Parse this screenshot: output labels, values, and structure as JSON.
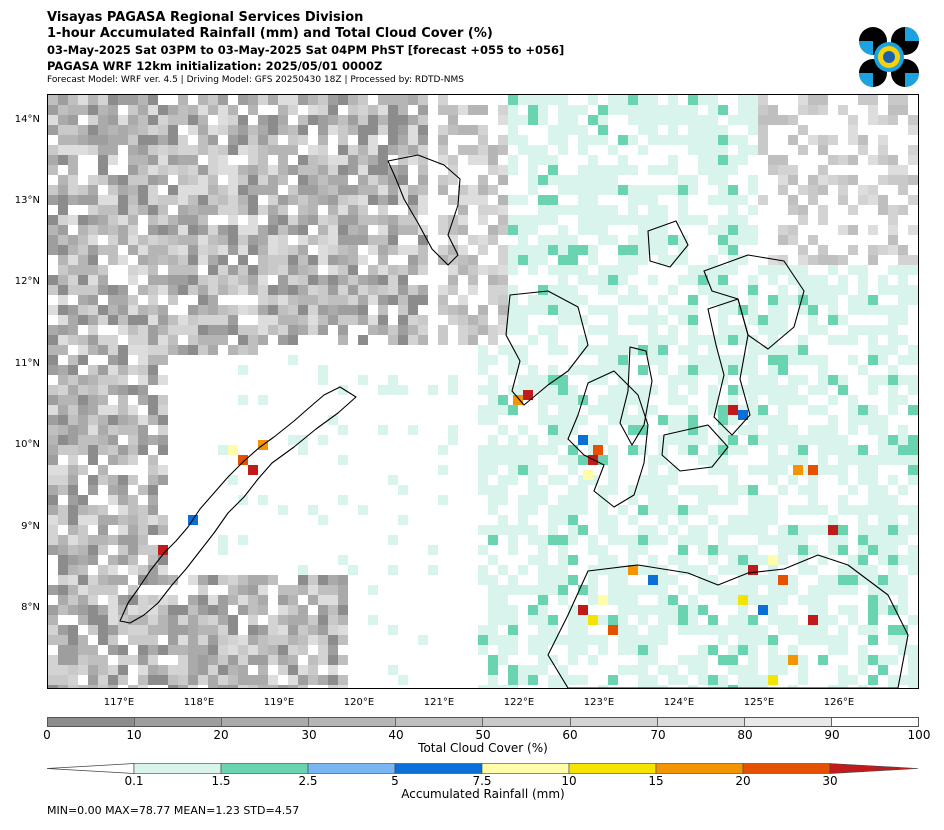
{
  "header": {
    "title1": "Visayas PAGASA Regional Services Division",
    "title2": "1-hour Accumulated Rainfall (mm) and Total Cloud Cover (%)",
    "title3": "03-May-2025 Sat 03PM to 03-May-2025 Sat 04PM PhST [forecast +055 to +056]",
    "title4": "PAGASA WRF 12km initialization: 2025/05/01 0000Z",
    "title5": "Forecast Model: WRF ver. 4.5 | Driving Model: GFS 20250430 18Z | Processed by: RDTD-NMS"
  },
  "map": {
    "lat_labels": [
      "14°N",
      "13°N",
      "12°N",
      "11°N",
      "10°N",
      "9°N",
      "8°N"
    ],
    "lon_labels": [
      "117°E",
      "118°E",
      "119°E",
      "120°E",
      "121°E",
      "122°E",
      "123°E",
      "124°E",
      "125°E",
      "126°E"
    ],
    "lat_range": [
      7.0,
      14.3
    ],
    "lon_range": [
      116.0,
      126.9
    ]
  },
  "cloud_colorbar": {
    "title": "Total Cloud Cover (%)",
    "ticks": [
      "0",
      "10",
      "20",
      "30",
      "40",
      "50",
      "60",
      "70",
      "80",
      "90",
      "100"
    ],
    "colors": [
      "#8c8c8c",
      "#9e9e9e",
      "#aaaaaa",
      "#b5b5b5",
      "#bfbfbf",
      "#c9c9c9",
      "#d3d3d3",
      "#dddddd",
      "#e9e9e9",
      "#ffffff"
    ]
  },
  "rain_colorbar": {
    "title": "Accumulated Rainfall (mm)",
    "ticks": [
      "0.1",
      "1.5",
      "2.5",
      "5",
      "7.5",
      "10",
      "15",
      "20",
      "30"
    ],
    "colors": [
      "#d9f4ec",
      "#6ad3b0",
      "#78b7f2",
      "#0a6fd6",
      "#fffdaa",
      "#f5e400",
      "#f29500",
      "#e65100",
      "#c01a1a"
    ]
  },
  "stats": {
    "text": "MIN=0.00   MAX=78.77   MEAN=1.23   STD=4.57"
  }
}
